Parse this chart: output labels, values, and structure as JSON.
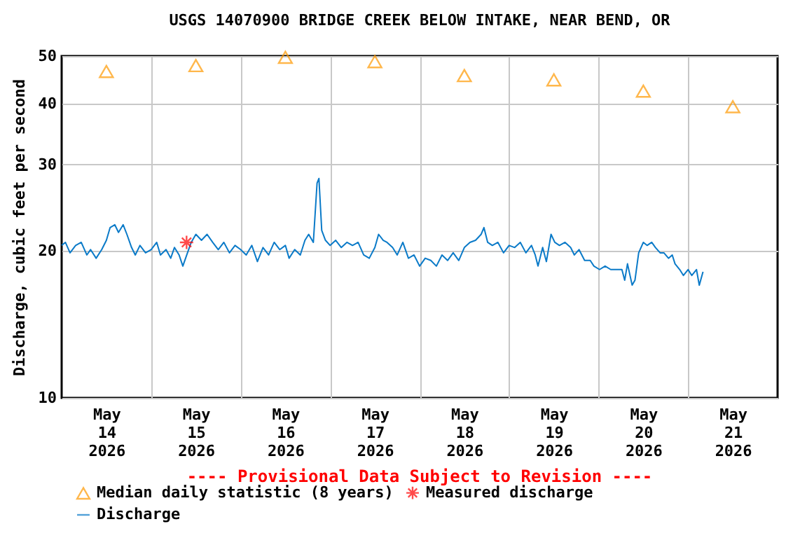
{
  "chart_data": {
    "type": "line",
    "title": "USGS 14070900 BRIDGE CREEK BELOW INTAKE, NEAR BEND, OR",
    "ylabel": "Discharge, cubic feet per second",
    "log": "y",
    "grid": true,
    "legend": "bottom",
    "xlim": [
      "2026-05-14T00:00",
      "2026-05-22T00:00"
    ],
    "xticks": [
      {
        "value": "2026-05-14T12:00",
        "label": "May 14 2026"
      },
      {
        "value": "2026-05-15T12:00",
        "label": "May 15 2026"
      },
      {
        "value": "2026-05-16T12:00",
        "label": "May 16 2026"
      },
      {
        "value": "2026-05-17T12:00",
        "label": "May 17 2026"
      },
      {
        "value": "2026-05-18T12:00",
        "label": "May 18 2026"
      },
      {
        "value": "2026-05-19T12:00",
        "label": "May 19 2026"
      },
      {
        "value": "2026-05-20T12:00",
        "label": "May 20 2026"
      },
      {
        "value": "2026-05-21T12:00",
        "label": "May 21 2026"
      },
      {
        "value": "2026-05-15T00:00",
        "label": null
      },
      {
        "value": "2026-05-16T00:00",
        "label": null
      },
      {
        "value": "2026-05-17T00:00",
        "label": null
      },
      {
        "value": "2026-05-18T00:00",
        "label": null
      },
      {
        "value": "2026-05-19T00:00",
        "label": null
      },
      {
        "value": "2026-05-20T00:00",
        "label": null
      },
      {
        "value": "2026-05-21T00:00",
        "label": null
      }
    ],
    "ylim": [
      10,
      50
    ],
    "yticks": [
      10,
      20,
      30,
      40,
      50
    ],
    "annotations": [
      "---- Provisional Data Subject to Revision ----"
    ],
    "series": [
      {
        "name": "Median daily statistic (8 years)",
        "type": "scatter",
        "marker": "triangle",
        "color": "#ff9900",
        "x": [
          "2026-05-14T12:00",
          "2026-05-15T12:00",
          "2026-05-16T12:00",
          "2026-05-17T12:00",
          "2026-05-18T12:00",
          "2026-05-19T12:00",
          "2026-05-20T12:00",
          "2026-05-21T12:00"
        ],
        "values": [
          46.5,
          47.8,
          49.7,
          48.7,
          45.6,
          44.7,
          42.4,
          39.4
        ]
      },
      {
        "name": "Measured discharge",
        "type": "scatter",
        "marker": "cross",
        "color": "#ff0000",
        "x": [
          "2026-05-15T09:30"
        ],
        "values": [
          20.8
        ]
      },
      {
        "name": "Discharge",
        "marker": "none",
        "color": "#0a7ac8",
        "x": [
          "2026-05-14T00:00",
          "2026-05-14T01:00",
          "2026-05-14T02:15",
          "2026-05-14T03:45",
          "2026-05-14T05:15",
          "2026-05-14T06:45",
          "2026-05-14T07:45",
          "2026-05-14T09:15",
          "2026-05-14T10:45",
          "2026-05-14T12:00",
          "2026-05-14T13:00",
          "2026-05-14T14:15",
          "2026-05-14T15:15",
          "2026-05-14T16:30",
          "2026-05-14T17:30",
          "2026-05-14T18:45",
          "2026-05-14T19:45",
          "2026-05-14T21:00",
          "2026-05-14T22:30",
          "2026-05-15T00:00",
          "2026-05-15T01:30",
          "2026-05-15T02:30",
          "2026-05-15T04:00",
          "2026-05-15T05:15",
          "2026-05-15T06:15",
          "2026-05-15T07:30",
          "2026-05-15T08:30",
          "2026-05-15T09:45",
          "2026-05-15T10:45",
          "2026-05-15T12:00",
          "2026-05-15T13:30",
          "2026-05-15T15:00",
          "2026-05-15T16:30",
          "2026-05-15T18:00",
          "2026-05-15T19:30",
          "2026-05-15T21:00",
          "2026-05-15T22:30",
          "2026-05-16T00:00",
          "2026-05-16T01:30",
          "2026-05-16T03:00",
          "2026-05-16T04:30",
          "2026-05-16T06:00",
          "2026-05-16T07:30",
          "2026-05-16T09:00",
          "2026-05-16T10:30",
          "2026-05-16T12:00",
          "2026-05-16T13:00",
          "2026-05-16T14:30",
          "2026-05-16T16:00",
          "2026-05-16T17:15",
          "2026-05-16T18:15",
          "2026-05-16T19:30",
          "2026-05-16T20:30",
          "2026-05-16T21:00",
          "2026-05-16T21:45",
          "2026-05-16T22:45",
          "2026-05-17T00:00",
          "2026-05-17T01:30",
          "2026-05-17T03:00",
          "2026-05-17T04:30",
          "2026-05-17T06:00",
          "2026-05-17T07:30",
          "2026-05-17T09:00",
          "2026-05-17T10:30",
          "2026-05-17T12:00",
          "2026-05-17T13:00",
          "2026-05-17T14:15",
          "2026-05-17T15:15",
          "2026-05-17T16:45",
          "2026-05-17T18:00",
          "2026-05-17T19:30",
          "2026-05-17T21:00",
          "2026-05-17T22:30",
          "2026-05-18T00:00",
          "2026-05-18T01:30",
          "2026-05-18T03:00",
          "2026-05-18T04:30",
          "2026-05-18T06:00",
          "2026-05-18T07:30",
          "2026-05-18T09:00",
          "2026-05-18T10:30",
          "2026-05-18T12:00",
          "2026-05-18T13:30",
          "2026-05-18T15:00",
          "2026-05-18T16:30",
          "2026-05-18T17:15",
          "2026-05-18T18:15",
          "2026-05-18T19:30",
          "2026-05-18T21:00",
          "2026-05-18T22:30",
          "2026-05-19T00:00",
          "2026-05-19T01:30",
          "2026-05-19T03:00",
          "2026-05-19T04:30",
          "2026-05-19T06:00",
          "2026-05-19T07:00",
          "2026-05-19T07:45",
          "2026-05-19T09:00",
          "2026-05-19T10:00",
          "2026-05-19T11:15",
          "2026-05-19T12:15",
          "2026-05-19T13:30",
          "2026-05-19T15:00",
          "2026-05-19T16:30",
          "2026-05-19T17:30",
          "2026-05-19T18:45",
          "2026-05-19T20:15",
          "2026-05-19T21:45",
          "2026-05-19T22:45",
          "2026-05-20T00:15",
          "2026-05-20T01:45",
          "2026-05-20T03:15",
          "2026-05-20T04:45",
          "2026-05-20T06:15",
          "2026-05-20T07:00",
          "2026-05-20T07:45",
          "2026-05-20T09:00",
          "2026-05-20T09:45",
          "2026-05-20T10:45",
          "2026-05-20T12:00",
          "2026-05-20T13:00",
          "2026-05-20T14:15",
          "2026-05-20T15:15",
          "2026-05-20T16:30",
          "2026-05-20T17:30",
          "2026-05-20T18:45",
          "2026-05-20T19:45",
          "2026-05-20T20:30",
          "2026-05-20T21:45",
          "2026-05-20T22:45",
          "2026-05-21T00:00",
          "2026-05-21T01:00",
          "2026-05-21T02:15",
          "2026-05-21T03:00",
          "2026-05-21T04:00"
        ],
        "values": [
          20.5,
          20.8,
          19.8,
          20.5,
          20.8,
          19.6,
          20.1,
          19.3,
          20.1,
          21.0,
          22.3,
          22.6,
          21.8,
          22.6,
          21.6,
          20.3,
          19.6,
          20.5,
          19.8,
          20.1,
          20.8,
          19.6,
          20.1,
          19.3,
          20.3,
          19.6,
          18.6,
          19.8,
          20.8,
          21.6,
          21.0,
          21.6,
          20.8,
          20.1,
          20.8,
          19.8,
          20.5,
          20.1,
          19.6,
          20.5,
          19.0,
          20.3,
          19.6,
          20.8,
          20.1,
          20.5,
          19.3,
          20.1,
          19.6,
          21.0,
          21.6,
          20.8,
          27.5,
          28.1,
          22.0,
          21.0,
          20.5,
          21.0,
          20.3,
          20.8,
          20.5,
          20.8,
          19.6,
          19.3,
          20.3,
          21.6,
          21.0,
          20.8,
          20.3,
          19.6,
          20.8,
          19.3,
          19.6,
          18.6,
          19.3,
          19.1,
          18.6,
          19.6,
          19.1,
          19.8,
          19.1,
          20.3,
          20.8,
          21.0,
          21.6,
          22.3,
          20.8,
          20.5,
          20.8,
          19.8,
          20.5,
          20.3,
          20.8,
          19.8,
          20.5,
          19.6,
          18.6,
          20.3,
          19.0,
          21.6,
          20.8,
          20.5,
          20.8,
          20.3,
          19.6,
          20.1,
          19.1,
          19.1,
          18.6,
          18.3,
          18.6,
          18.3,
          18.3,
          18.3,
          17.4,
          18.8,
          17.0,
          17.4,
          19.8,
          20.8,
          20.5,
          20.8,
          20.3,
          19.8,
          19.8,
          19.3,
          19.6,
          18.8,
          18.3,
          17.8,
          18.3,
          17.8,
          18.3,
          17.0,
          18.1
        ]
      }
    ]
  }
}
